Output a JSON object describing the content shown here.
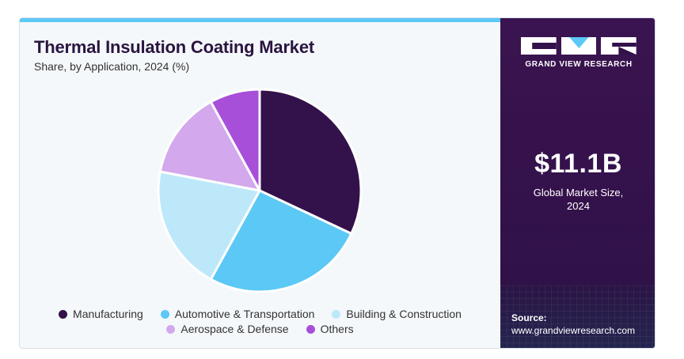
{
  "header": {
    "title": "Thermal Insulation Coating Market",
    "subtitle": "Share, by Application, 2024 (%)"
  },
  "chart_data": {
    "type": "pie",
    "title": "Thermal Insulation Coating Market",
    "subtitle": "Share, by Application, 2024 (%)",
    "categories": [
      "Manufacturing",
      "Automotive & Transportation",
      "Building & Construction",
      "Aerospace & Defense",
      "Others"
    ],
    "values": [
      32,
      26,
      20,
      14,
      8
    ],
    "colors": [
      "#33114a",
      "#5bc8f5",
      "#bde8fa",
      "#d3a8ec",
      "#a84fd9"
    ],
    "legend_position": "bottom"
  },
  "legend": {
    "row1": [
      "Manufacturing",
      "Automotive & Transportation",
      "Building & Construction"
    ],
    "row2": [
      "Aerospace & Defense",
      "Others"
    ]
  },
  "sidebar": {
    "brand": "GRAND VIEW RESEARCH",
    "market_size": "$11.1B",
    "market_size_label_line1": "Global Market Size,",
    "market_size_label_line2": "2024",
    "source_label": "Source:",
    "source_url": "www.grandviewresearch.com"
  }
}
